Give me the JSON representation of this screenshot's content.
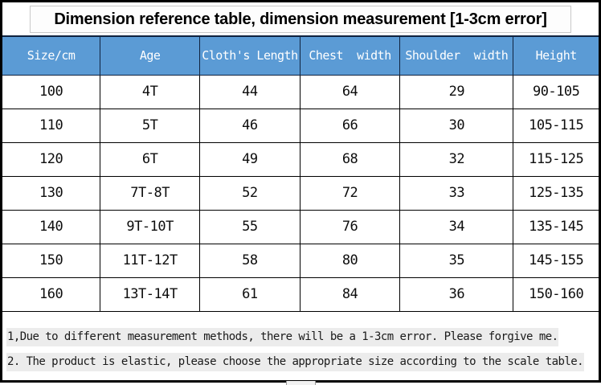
{
  "title": "Dimension reference table, dimension measurement [1-3cm error]",
  "table": {
    "headers": [
      "Size/cm",
      "Age",
      "Cloth's Length",
      "Chest  width",
      "Shoulder  width",
      "Height"
    ],
    "col_widths_pct": [
      16.4,
      16.7,
      16.8,
      16.8,
      19.0,
      14.3
    ],
    "rows": [
      [
        "100",
        "4T",
        "44",
        "64",
        "29",
        "90-105"
      ],
      [
        "110",
        "5T",
        "46",
        "66",
        "30",
        "105-115"
      ],
      [
        "120",
        "6T",
        "49",
        "68",
        "32",
        "115-125"
      ],
      [
        "130",
        "7T-8T",
        "52",
        "72",
        "33",
        "125-135"
      ],
      [
        "140",
        "9T-10T",
        "55",
        "76",
        "34",
        "135-145"
      ],
      [
        "150",
        "11T-12T",
        "58",
        "80",
        "35",
        "145-155"
      ],
      [
        "160",
        "13T-14T",
        "61",
        "84",
        "36",
        "150-160"
      ]
    ]
  },
  "notes": [
    "1,Due to different measurement methods, there will be a 1-3cm error. Please forgive me.",
    "2. The product is elastic, please choose the appropriate size according to the scale table."
  ],
  "colors": {
    "header_bg": "#5b9bd5",
    "header_text": "#ffffff",
    "grid_border": "#000000",
    "note_highlight": "#ececec",
    "outer_border": "#000000"
  }
}
